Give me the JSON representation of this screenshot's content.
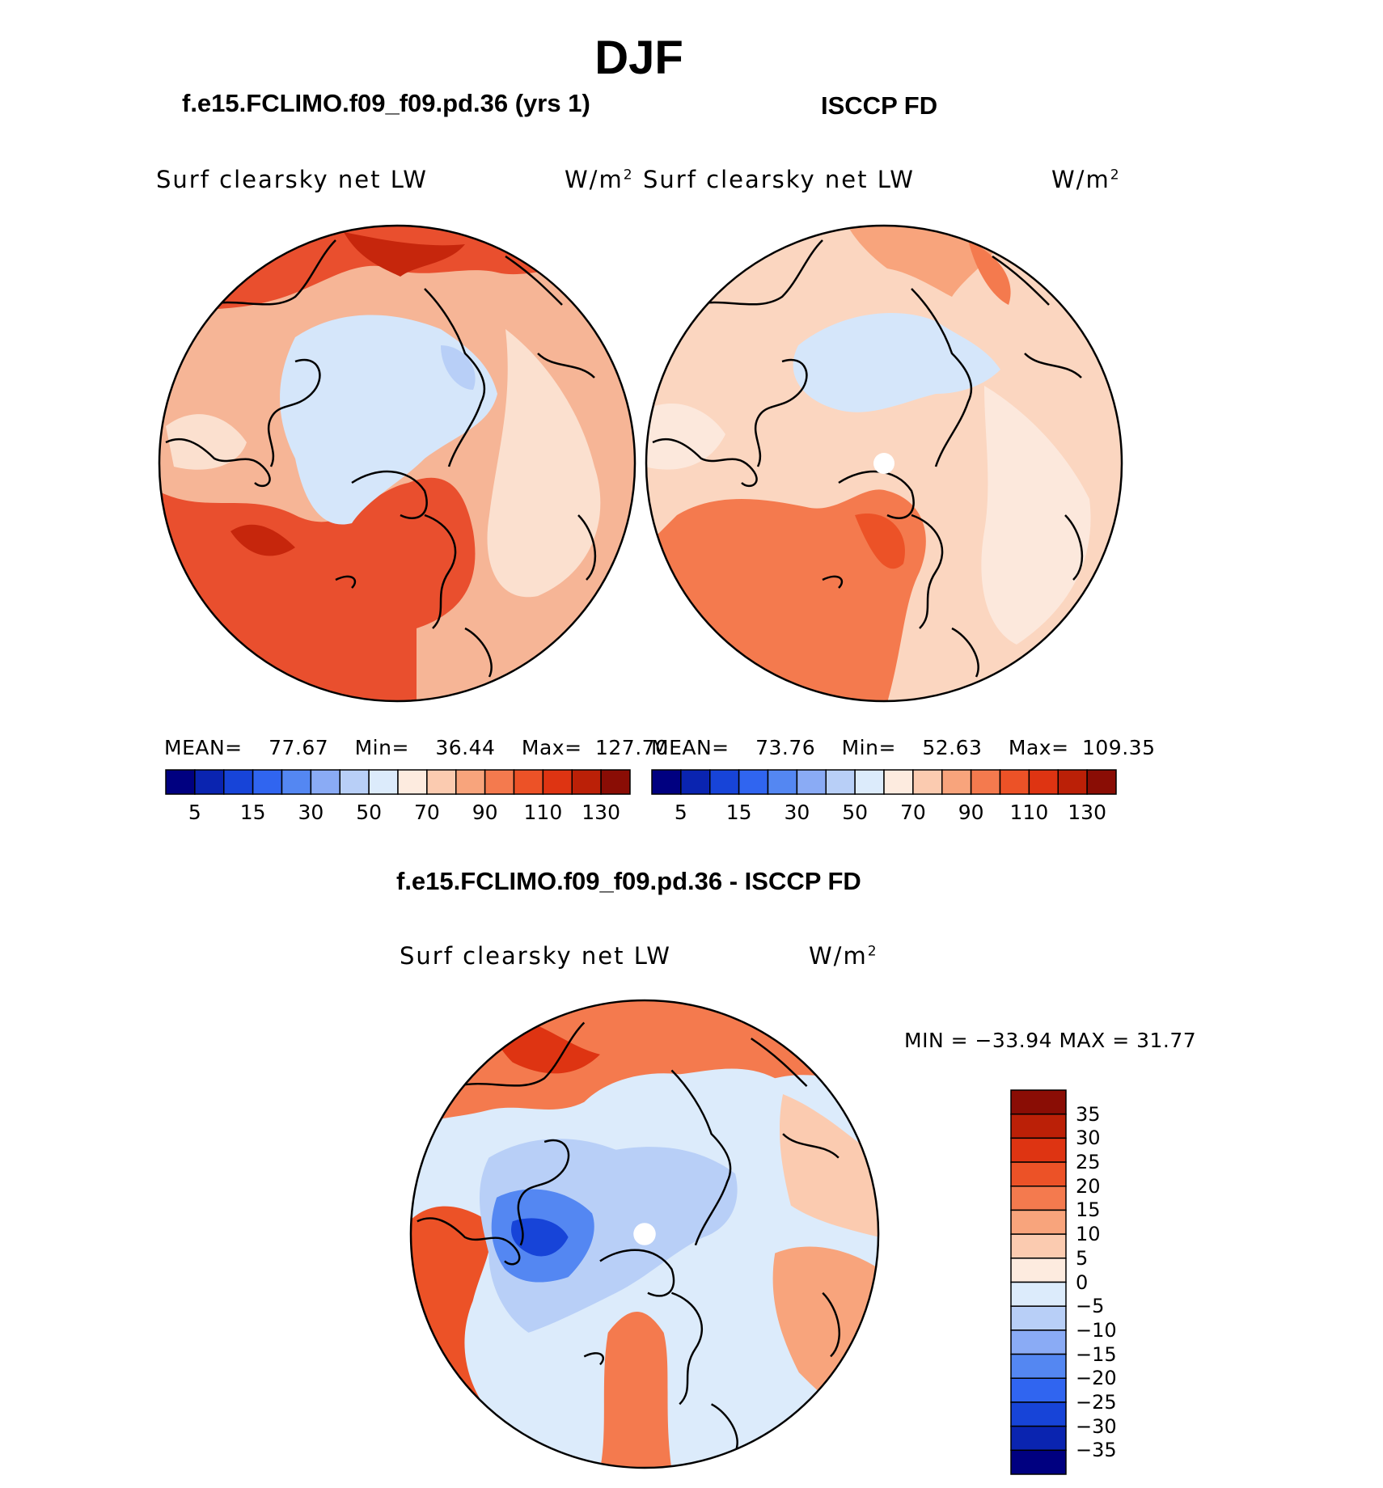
{
  "title": "DJF",
  "panels": [
    {
      "id": "model",
      "title": "f.e15.FCLIMO.f09_f09.pd.36 (yrs 1)",
      "variable": "Surf clearsky net LW",
      "units": "W/m",
      "units_sup": "2",
      "mean_label": "MEAN=",
      "mean": "77.67",
      "min_label": "Min=",
      "min": "36.44",
      "max_label": "Max=",
      "max": "127.70",
      "region": "Arctic polar stereographic",
      "field_levels": {
        "background": "#f6b596",
        "ocean_warm": "#e94f2e",
        "arctic_cool": "#d5e6fa",
        "land_mid": "#fbe0cf"
      }
    },
    {
      "id": "obs",
      "title": "ISCCP FD",
      "variable": "Surf clearsky net LW",
      "units": "W/m",
      "units_sup": "2",
      "mean_label": "MEAN=",
      "mean": "73.76",
      "min_label": "Min=",
      "min": "52.63",
      "max_label": "Max=",
      "max": "109.35",
      "region": "Arctic polar stereographic",
      "field_levels": {
        "background": "#fbd6c0",
        "ocean_warm": "#f3774c",
        "arctic_cool": "#d5e6fa",
        "land_mid": "#fce8dc"
      }
    }
  ],
  "colorbar_abs": {
    "colors": [
      "#000080",
      "#0a24b0",
      "#1744d8",
      "#3065f0",
      "#5487f2",
      "#8aabf5",
      "#b8cff7",
      "#dcebfb",
      "#fdebdf",
      "#fbcbb0",
      "#f8a47c",
      "#f47a4e",
      "#ec5227",
      "#de3412",
      "#bb2007",
      "#8a0d05"
    ],
    "tick_labels": [
      "5",
      "15",
      "30",
      "50",
      "70",
      "90",
      "110",
      "130"
    ]
  },
  "diff": {
    "title": "f.e15.FCLIMO.f09_f09.pd.36 - ISCCP FD",
    "variable": "Surf clearsky net LW",
    "units": "W/m",
    "units_sup": "2",
    "min_max_text": "MIN = −33.94 MAX =   31.77",
    "colorbar": {
      "colors": [
        "#000080",
        "#0a24b0",
        "#1744d8",
        "#3065f0",
        "#5487f2",
        "#8aabf5",
        "#b8cff7",
        "#dcebfb",
        "#fdebdf",
        "#fbcbb0",
        "#f8a47c",
        "#f47a4e",
        "#ec5227",
        "#de3412",
        "#bb2007",
        "#8a0d05"
      ],
      "tick_labels": [
        "35",
        "30",
        "25",
        "20",
        "15",
        "10",
        "5",
        "0",
        "−5",
        "−10",
        "−15",
        "−20",
        "−25",
        "−30",
        "−35"
      ]
    }
  }
}
